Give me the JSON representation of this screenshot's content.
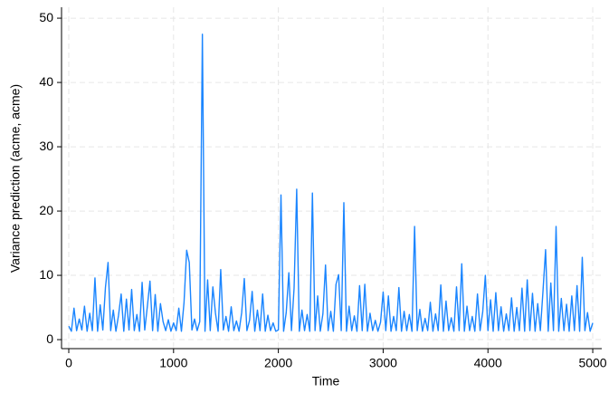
{
  "chart_data": {
    "type": "line",
    "x_label": "Time",
    "y_label": "Variance prediction (acme, acme)",
    "x": [
      0,
      25,
      50,
      75,
      100,
      125,
      150,
      175,
      200,
      225,
      250,
      275,
      300,
      325,
      350,
      375,
      400,
      425,
      450,
      475,
      500,
      525,
      550,
      575,
      600,
      625,
      650,
      675,
      700,
      725,
      750,
      775,
      800,
      825,
      850,
      875,
      900,
      925,
      950,
      975,
      1000,
      1025,
      1050,
      1075,
      1100,
      1125,
      1150,
      1175,
      1200,
      1225,
      1250,
      1275,
      1300,
      1325,
      1350,
      1375,
      1400,
      1425,
      1450,
      1475,
      1500,
      1525,
      1550,
      1575,
      1600,
      1625,
      1650,
      1675,
      1700,
      1725,
      1750,
      1775,
      1800,
      1825,
      1850,
      1875,
      1900,
      1925,
      1950,
      1975,
      2000,
      2025,
      2050,
      2075,
      2100,
      2125,
      2150,
      2175,
      2200,
      2225,
      2250,
      2275,
      2300,
      2325,
      2350,
      2375,
      2400,
      2425,
      2450,
      2475,
      2500,
      2525,
      2550,
      2575,
      2600,
      2625,
      2650,
      2675,
      2700,
      2725,
      2750,
      2775,
      2800,
      2825,
      2850,
      2875,
      2900,
      2925,
      2950,
      2975,
      3000,
      3025,
      3050,
      3075,
      3100,
      3125,
      3150,
      3175,
      3200,
      3225,
      3250,
      3275,
      3300,
      3325,
      3350,
      3375,
      3400,
      3425,
      3450,
      3475,
      3500,
      3525,
      3550,
      3575,
      3600,
      3625,
      3650,
      3675,
      3700,
      3725,
      3750,
      3775,
      3800,
      3825,
      3850,
      3875,
      3900,
      3925,
      3950,
      3975,
      4000,
      4025,
      4050,
      4075,
      4100,
      4125,
      4150,
      4175,
      4200,
      4225,
      4250,
      4275,
      4300,
      4325,
      4350,
      4375,
      4400,
      4425,
      4450,
      4475,
      4500,
      4525,
      4550,
      4575,
      4600,
      4625,
      4650,
      4675,
      4700,
      4725,
      4750,
      4775,
      4800,
      4825,
      4850,
      4875,
      4900,
      4925,
      4950,
      4975,
      5000
    ],
    "values": [
      2.1,
      1.3,
      4.9,
      1.4,
      3.2,
      1.5,
      5.2,
      1.3,
      4.1,
      1.4,
      9.6,
      1.3,
      5.4,
      1.5,
      8.1,
      12.0,
      1.4,
      4.6,
      1.3,
      3.8,
      7.1,
      1.3,
      6.3,
      1.5,
      7.8,
      1.4,
      3.9,
      1.3,
      8.9,
      1.5,
      5.2,
      9.1,
      1.4,
      7.0,
      1.3,
      5.6,
      2.8,
      1.4,
      3.1,
      1.3,
      2.6,
      1.4,
      4.9,
      1.3,
      5.8,
      13.9,
      12.0,
      1.5,
      3.2,
      1.4,
      2.8,
      47.5,
      1.3,
      9.3,
      1.4,
      8.2,
      4.1,
      1.3,
      10.9,
      1.5,
      3.6,
      1.3,
      5.1,
      1.4,
      2.9,
      1.3,
      4.2,
      9.5,
      1.4,
      3.0,
      7.5,
      1.3,
      4.6,
      1.4,
      7.1,
      1.3,
      3.8,
      1.4,
      2.6,
      1.3,
      1.5,
      22.5,
      1.3,
      4.2,
      10.4,
      1.4,
      8.0,
      23.4,
      1.3,
      4.6,
      1.4,
      3.9,
      1.3,
      22.8,
      1.4,
      6.8,
      1.3,
      4.0,
      11.6,
      1.4,
      4.4,
      1.3,
      8.6,
      10.1,
      1.4,
      21.3,
      1.3,
      5.2,
      1.4,
      3.7,
      1.3,
      8.4,
      1.4,
      8.6,
      1.3,
      4.1,
      1.4,
      3.0,
      1.3,
      2.7,
      7.4,
      1.4,
      6.8,
      1.3,
      3.6,
      1.4,
      8.1,
      1.3,
      4.4,
      1.4,
      3.9,
      1.3,
      17.6,
      1.4,
      4.7,
      1.3,
      3.3,
      1.4,
      5.8,
      1.3,
      4.0,
      1.4,
      8.5,
      1.3,
      6.0,
      1.4,
      3.4,
      1.3,
      8.2,
      1.4,
      11.8,
      1.3,
      5.2,
      1.4,
      3.6,
      1.3,
      7.1,
      1.4,
      4.3,
      10.0,
      1.4,
      6.2,
      1.3,
      7.3,
      1.4,
      5.1,
      1.3,
      4.0,
      1.4,
      6.5,
      1.3,
      5.0,
      1.4,
      8.0,
      1.3,
      9.3,
      1.4,
      7.2,
      1.3,
      5.6,
      1.4,
      7.5,
      14.0,
      1.3,
      8.8,
      1.4,
      17.6,
      1.3,
      6.4,
      1.4,
      5.5,
      1.3,
      6.8,
      1.4,
      8.4,
      1.3,
      12.8,
      1.4,
      4.2,
      1.3,
      2.6
    ],
    "color": "#1a85ff",
    "xlim": [
      -69,
      5086
    ],
    "ylim": [
      -1.4,
      51.7
    ],
    "xticks": [
      0,
      1000,
      2000,
      3000,
      4000,
      5000
    ],
    "yticks": [
      0,
      10,
      20,
      30,
      40,
      50
    ],
    "grid": true
  }
}
